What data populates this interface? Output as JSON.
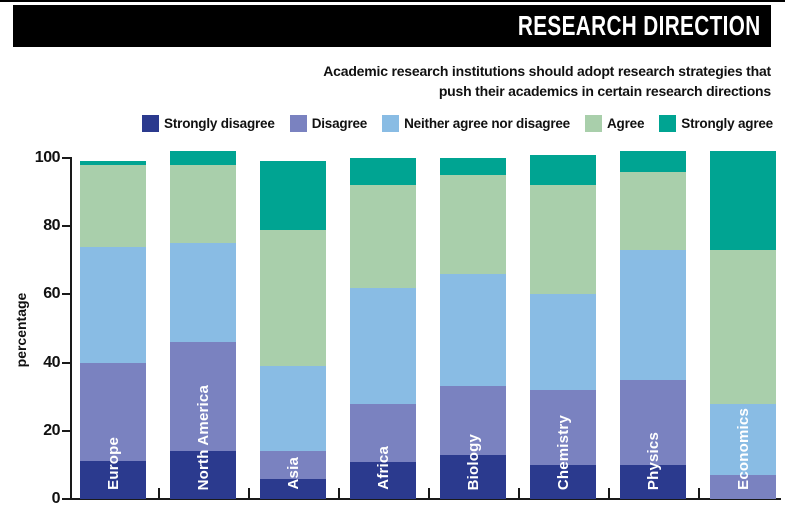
{
  "header": {
    "title": "RESEARCH DIRECTION",
    "bar_color": "#000000",
    "text_color": "#ffffff"
  },
  "subtitle": {
    "line1": "Academic research institutions should adopt research strategies that",
    "line2": "push their academics in certain research directions"
  },
  "chart_data": {
    "type": "bar",
    "stacked": true,
    "title": "Academic research institutions should adopt research strategies that push their academics in certain research directions",
    "ylabel": "percentage",
    "ylim": [
      0,
      100
    ],
    "yticks": [
      0,
      20,
      40,
      60,
      80,
      100
    ],
    "grid": false,
    "legend_position": "top",
    "categories": [
      "Europe",
      "North America",
      "Asia",
      "Africa",
      "Biology",
      "Chemistry",
      "Physics",
      "Economics"
    ],
    "series": [
      {
        "name": "Strongly disagree",
        "color": "#2b3a8e",
        "values": [
          11,
          14,
          6,
          11,
          13,
          10,
          10,
          0
        ]
      },
      {
        "name": "Disagree",
        "color": "#7a82c0",
        "values": [
          29,
          32,
          8,
          17,
          20,
          22,
          25,
          7
        ]
      },
      {
        "name": "Neither agree nor disagree",
        "color": "#89bce4",
        "values": [
          34,
          29,
          25,
          34,
          33,
          28,
          38,
          21
        ]
      },
      {
        "name": "Agree",
        "color": "#a9cfab",
        "values": [
          24,
          23,
          40,
          30,
          29,
          32,
          23,
          45
        ]
      },
      {
        "name": "Strongly agree",
        "color": "#00a492",
        "values": [
          1,
          4,
          20,
          8,
          5,
          9,
          6,
          29
        ]
      }
    ]
  }
}
